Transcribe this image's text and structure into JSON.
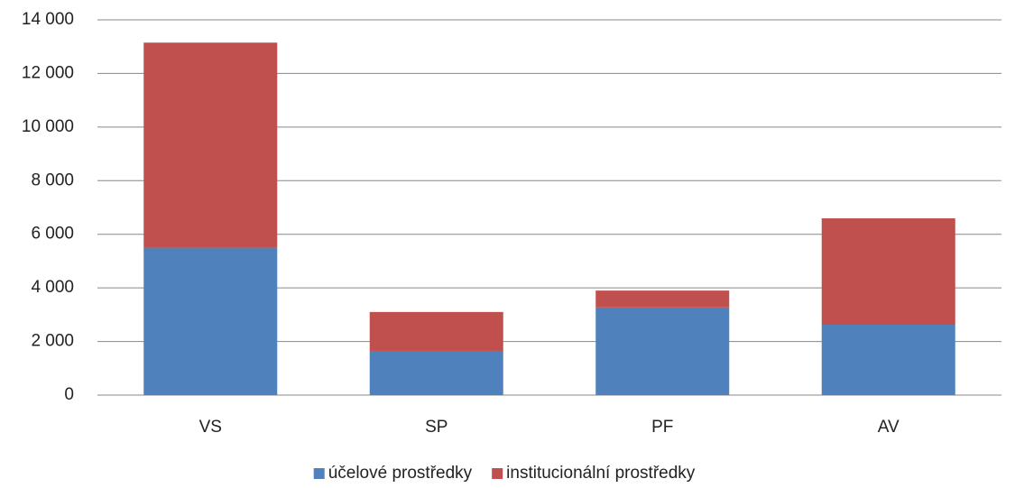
{
  "chart_data": {
    "type": "stacked_bar",
    "categories": [
      "VS",
      "SP",
      "PF",
      "AV"
    ],
    "series": [
      {
        "name": "účelové prostředky",
        "color": "#4f81bd",
        "values": [
          5500,
          1650,
          3270,
          2625
        ]
      },
      {
        "name": "institucionální prostředky",
        "color": "#c0504d",
        "values": [
          7650,
          1450,
          630,
          3970
        ]
      }
    ],
    "ylim": [
      0,
      14000
    ],
    "yticks": [
      0,
      {
        "value": 2000,
        "label": "2 000"
      },
      {
        "value": 4000,
        "label": "4 000"
      },
      {
        "value": 6000,
        "label": "6 000"
      },
      {
        "value": 8000,
        "label": "8 000"
      },
      {
        "value": 10000,
        "label": "10 000"
      },
      {
        "value": 12000,
        "label": "12 000"
      },
      {
        "value": 14000,
        "label": "14 000"
      }
    ],
    "grid": true,
    "legend": "bottom"
  }
}
